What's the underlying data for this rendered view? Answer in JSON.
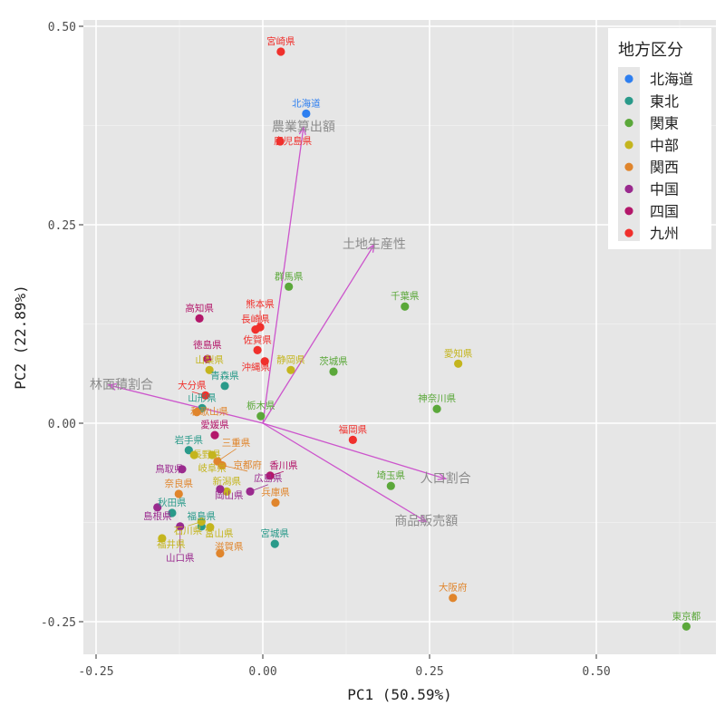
{
  "chart_data": {
    "type": "scatter",
    "subtype": "pca-biplot",
    "xlabel": "PC1 (50.59%)",
    "ylabel": "PC2 (22.89%)",
    "xlim": [
      -0.27,
      0.68
    ],
    "ylim": [
      -0.29,
      0.51
    ],
    "xticks": [
      -0.25,
      0,
      0.25,
      0.5
    ],
    "xtick_labels": [
      "-0.25",
      "0.00",
      "0.25",
      "0.50"
    ],
    "yticks": [
      -0.25,
      0,
      0.25,
      0.5
    ],
    "ytick_labels": [
      "-0.25",
      "0.00",
      "0.25",
      "0.50"
    ],
    "grid": true,
    "legend": {
      "title": "地方区分",
      "placement": "top-right",
      "entries": [
        {
          "name": "北海道",
          "color": "#2E7FF0"
        },
        {
          "name": "東北",
          "color": "#2A9A8A"
        },
        {
          "name": "関東",
          "color": "#5BA83A"
        },
        {
          "name": "中部",
          "color": "#C4B51E"
        },
        {
          "name": "関西",
          "color": "#E0852C"
        },
        {
          "name": "中国",
          "color": "#9A2A8E"
        },
        {
          "name": "四国",
          "color": "#B3176A"
        },
        {
          "name": "九州",
          "color": "#F0302C"
        }
      ]
    },
    "arrow_color": "#CC55CC",
    "loadings": [
      {
        "name": "農業算出額",
        "x": 0.061,
        "y": 0.373
      },
      {
        "name": "土地生産性",
        "x": 0.167,
        "y": 0.225
      },
      {
        "name": "林面積割合",
        "x": -0.231,
        "y": 0.048
      },
      {
        "name": "人口割合",
        "x": 0.274,
        "y": -0.07
      },
      {
        "name": "商品販売額",
        "x": 0.245,
        "y": -0.124
      }
    ],
    "points": [
      {
        "name": "北海道",
        "group": "北海道",
        "x": 0.065,
        "y": 0.39
      },
      {
        "name": "青森県",
        "group": "東北",
        "x": -0.057,
        "y": 0.047
      },
      {
        "name": "岩手県",
        "group": "東北",
        "x": -0.111,
        "y": -0.034
      },
      {
        "name": "宮城県",
        "group": "東北",
        "x": 0.018,
        "y": -0.152
      },
      {
        "name": "秋田県",
        "group": "東北",
        "x": -0.136,
        "y": -0.113
      },
      {
        "name": "山形県",
        "group": "東北",
        "x": -0.091,
        "y": 0.019
      },
      {
        "name": "福島県",
        "group": "東北",
        "x": -0.092,
        "y": -0.13
      },
      {
        "name": "茨城県",
        "group": "関東",
        "x": 0.106,
        "y": 0.065
      },
      {
        "name": "栃木県",
        "group": "関東",
        "x": -0.003,
        "y": 0.009
      },
      {
        "name": "群馬県",
        "group": "関東",
        "x": 0.039,
        "y": 0.172
      },
      {
        "name": "埼玉県",
        "group": "関東",
        "x": 0.192,
        "y": -0.079
      },
      {
        "name": "千葉県",
        "group": "関東",
        "x": 0.213,
        "y": 0.147
      },
      {
        "name": "東京都",
        "group": "関東",
        "x": 0.635,
        "y": -0.256
      },
      {
        "name": "神奈川県",
        "group": "関東",
        "x": 0.261,
        "y": 0.018
      },
      {
        "name": "新潟県",
        "group": "中部",
        "x": -0.054,
        "y": -0.086
      },
      {
        "name": "富山県",
        "group": "中部",
        "x": -0.079,
        "y": -0.131
      },
      {
        "name": "石川県",
        "group": "中部",
        "x": -0.092,
        "y": -0.124
      },
      {
        "name": "福井県",
        "group": "中部",
        "x": -0.151,
        "y": -0.145
      },
      {
        "name": "山梨県",
        "group": "中部",
        "x": -0.08,
        "y": 0.067
      },
      {
        "name": "長野県",
        "group": "中部",
        "x": -0.103,
        "y": -0.04
      },
      {
        "name": "岐阜県",
        "group": "中部",
        "x": -0.076,
        "y": -0.04
      },
      {
        "name": "静岡県",
        "group": "中部",
        "x": 0.042,
        "y": 0.067
      },
      {
        "name": "愛知県",
        "group": "中部",
        "x": 0.293,
        "y": 0.075
      },
      {
        "name": "三重県",
        "group": "関西",
        "x": -0.068,
        "y": -0.048
      },
      {
        "name": "滋賀県",
        "group": "関西",
        "x": -0.064,
        "y": -0.164
      },
      {
        "name": "京都府",
        "group": "関西",
        "x": -0.061,
        "y": -0.053
      },
      {
        "name": "大阪府",
        "group": "関西",
        "x": 0.285,
        "y": -0.22
      },
      {
        "name": "兵庫県",
        "group": "関西",
        "x": 0.019,
        "y": -0.1
      },
      {
        "name": "奈良県",
        "group": "関西",
        "x": -0.126,
        "y": -0.089
      },
      {
        "name": "和歌山県",
        "group": "関西",
        "x": -0.099,
        "y": 0.014
      },
      {
        "name": "鳥取県",
        "group": "中国",
        "x": -0.121,
        "y": -0.058
      },
      {
        "name": "島根県",
        "group": "中国",
        "x": -0.158,
        "y": -0.106
      },
      {
        "name": "岡山県",
        "group": "中国",
        "x": -0.064,
        "y": -0.083
      },
      {
        "name": "広島県",
        "group": "中国",
        "x": -0.019,
        "y": -0.086
      },
      {
        "name": "山口県",
        "group": "中国",
        "x": -0.124,
        "y": -0.13
      },
      {
        "name": "徳島県",
        "group": "四国",
        "x": -0.083,
        "y": 0.081
      },
      {
        "name": "香川県",
        "group": "四国",
        "x": 0.011,
        "y": -0.066
      },
      {
        "name": "愛媛県",
        "group": "四国",
        "x": -0.072,
        "y": -0.015
      },
      {
        "name": "高知県",
        "group": "四国",
        "x": -0.095,
        "y": 0.132
      },
      {
        "name": "福岡県",
        "group": "九州",
        "x": 0.135,
        "y": -0.021
      },
      {
        "name": "佐賀県",
        "group": "九州",
        "x": -0.008,
        "y": 0.092
      },
      {
        "name": "長崎県",
        "group": "九州",
        "x": -0.011,
        "y": 0.118
      },
      {
        "name": "熊本県",
        "group": "九州",
        "x": -0.004,
        "y": 0.121
      },
      {
        "name": "大分県",
        "group": "九州",
        "x": -0.086,
        "y": 0.035
      },
      {
        "name": "宮崎県",
        "group": "九州",
        "x": 0.027,
        "y": 0.468
      },
      {
        "name": "鹿児島県",
        "group": "九州",
        "x": 0.026,
        "y": 0.355
      },
      {
        "name": "沖縄県",
        "group": "九州",
        "x": 0.003,
        "y": 0.078
      }
    ]
  }
}
